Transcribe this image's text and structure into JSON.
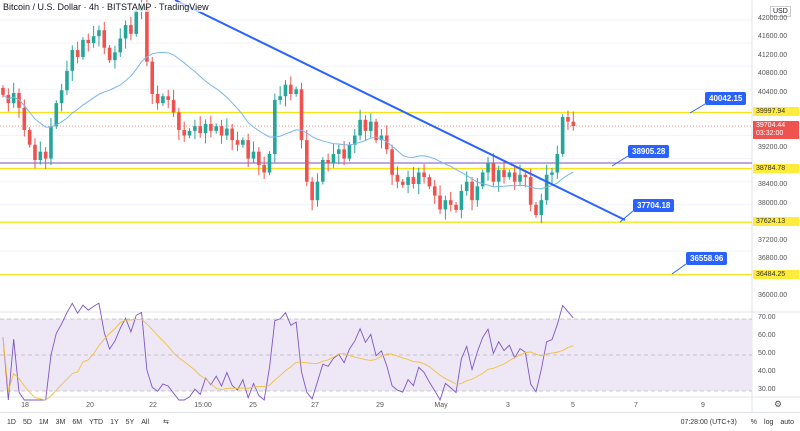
{
  "header": {
    "title": "Bitcoin / U.S. Dollar · 4h · BITSTAMP · TradingView",
    "currency": "USD"
  },
  "price_axis": {
    "ticks": [
      "42000.00",
      "41600.00",
      "41200.00",
      "40800.00",
      "40400.00",
      "39200.00",
      "38400.00",
      "38000.00",
      "37200.00",
      "36800.00",
      "36000.00"
    ],
    "tick_values": [
      42000,
      41600,
      41200,
      40800,
      40400,
      39200,
      38400,
      38000,
      37200,
      36800,
      36000
    ]
  },
  "rsi_axis": {
    "ticks": [
      "70.00",
      "60.00",
      "50.00",
      "40.00",
      "30.00"
    ],
    "tick_values": [
      70,
      60,
      50,
      40,
      30
    ]
  },
  "levels": [
    {
      "label": "39997.94",
      "value": 39997.94
    },
    {
      "label": "38784.78",
      "value": 38784.78
    },
    {
      "label": "37624.13",
      "value": 37624.13
    },
    {
      "label": "36484.25",
      "value": 36484.25
    }
  ],
  "current": {
    "price": "39704.44",
    "countdown": "03:32:00",
    "value": 39704.44
  },
  "callouts": [
    {
      "label": "40042.15"
    },
    {
      "label": "38905.28"
    },
    {
      "label": "37704.18"
    },
    {
      "label": "36558.96"
    }
  ],
  "time_axis": [
    "18",
    "20",
    "22",
    "15:00",
    "25",
    "27",
    "29",
    "May",
    "3",
    "5",
    "7",
    "9"
  ],
  "toolbar": {
    "ranges": [
      "1D",
      "5D",
      "1M",
      "3M",
      "6M",
      "YTD",
      "1Y",
      "5Y",
      "All"
    ],
    "clock": "07:28:00 (UTC+3)",
    "percent": "%",
    "log": "log",
    "auto": "auto"
  },
  "colors": {
    "up": "#26a69a",
    "down": "#ef5350",
    "trend": "#2962ff",
    "level": "#f5e41a",
    "ma": "#7cb5ec",
    "rsi": "#7e57c2",
    "rsi_ma": "#f0c040"
  },
  "chart_data": {
    "type": "candlestick",
    "interval": "4h",
    "closes": [
      40380,
      40200,
      40420,
      40100,
      39620,
      39300,
      38970,
      39150,
      39000,
      39700,
      40200,
      40480,
      40900,
      41350,
      41200,
      41570,
      41500,
      41650,
      41780,
      41400,
      41130,
      41300,
      41600,
      41890,
      41700,
      42200,
      42300,
      41100,
      40400,
      40200,
      40350,
      40270,
      40000,
      39620,
      39500,
      39600,
      39700,
      39550,
      39750,
      39600,
      39700,
      39500,
      39650,
      39400,
      39300,
      39400,
      39000,
      39150,
      38860,
      38700,
      39100,
      40270,
      40350,
      40600,
      40400,
      40500,
      39400,
      38500,
      38100,
      38500,
      38970,
      38900,
      39100,
      39200,
      39000,
      39300,
      39500,
      39840,
      39600,
      39800,
      39400,
      39500,
      39200,
      38650,
      38500,
      38430,
      38600,
      38450,
      38700,
      38600,
      38400,
      38200,
      37900,
      38100,
      38000,
      37890,
      38300,
      38500,
      38100,
      38400,
      38700,
      38900,
      38500,
      38750,
      38600,
      38700,
      38500,
      38650,
      38600,
      38000,
      37780,
      38100,
      38650,
      38700,
      39100,
      39900,
      39800,
      39704
    ]
  }
}
